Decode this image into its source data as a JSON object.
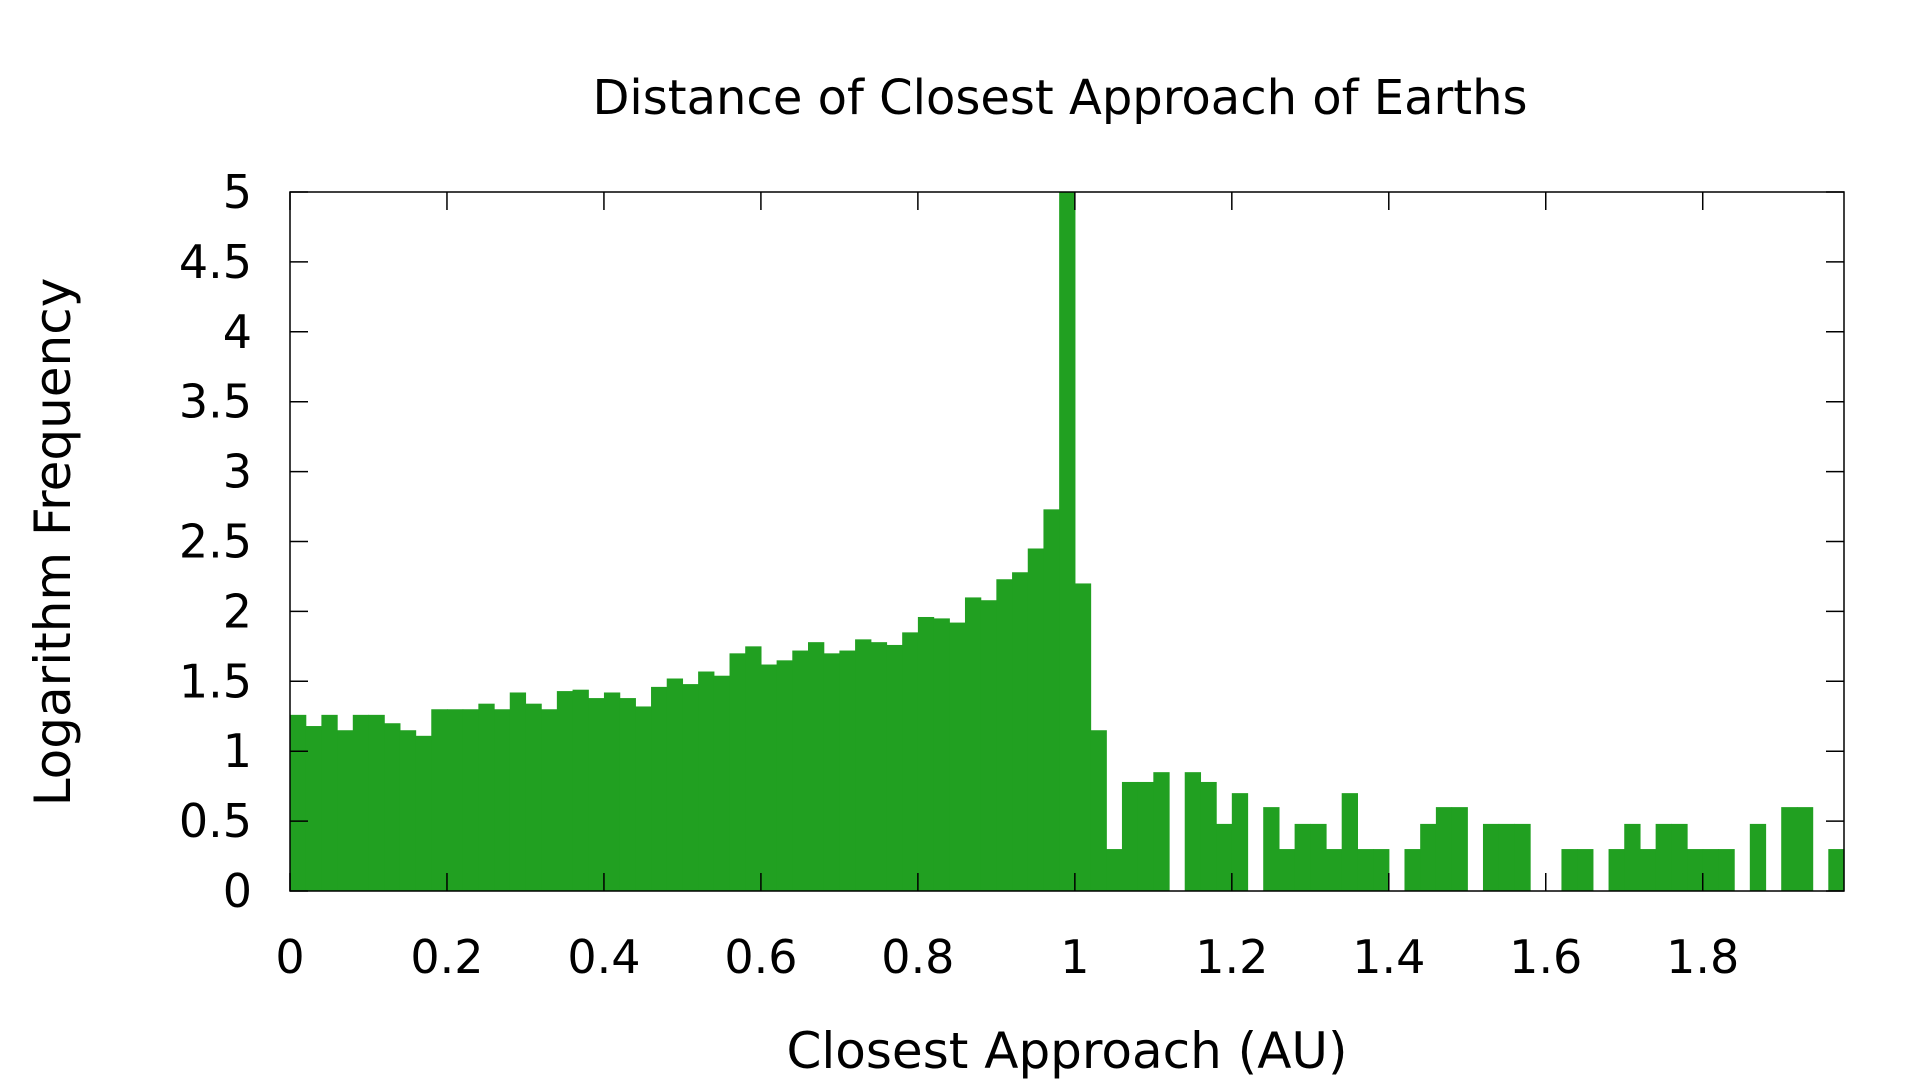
{
  "chart_data": {
    "type": "bar",
    "title": "Distance of Closest Approach of Earths",
    "xlabel": "Closest Approach (AU)",
    "ylabel": "Logarithm Frequency",
    "xlim": [
      0,
      1.98
    ],
    "ylim": [
      0,
      5
    ],
    "xticks": [
      0,
      0.2,
      0.4,
      0.6,
      0.8,
      1,
      1.2,
      1.4,
      1.6,
      1.8
    ],
    "xtick_labels": [
      "0",
      "0.2",
      "0.4",
      "0.6",
      "0.8",
      "1",
      "1.2",
      "1.4",
      "1.6",
      "1.8"
    ],
    "yticks": [
      0,
      0.5,
      1,
      1.5,
      2,
      2.5,
      3,
      3.5,
      4,
      4.5,
      5
    ],
    "ytick_labels": [
      "0",
      "0.5",
      "1",
      "1.5",
      "2",
      "2.5",
      "3",
      "3.5",
      "4",
      "4.5",
      "5"
    ],
    "bin_width": 0.02,
    "bar_color": "#21a021",
    "grid": false,
    "legend": "none",
    "x": [
      0,
      0.02,
      0.04,
      0.06,
      0.08,
      0.1,
      0.12,
      0.14,
      0.16,
      0.18,
      0.2,
      0.22,
      0.24,
      0.26,
      0.28,
      0.3,
      0.32,
      0.34,
      0.36,
      0.38,
      0.4,
      0.42,
      0.44,
      0.46,
      0.48,
      0.5,
      0.52,
      0.54,
      0.56,
      0.58,
      0.6,
      0.62,
      0.64,
      0.66,
      0.68,
      0.7,
      0.72,
      0.74,
      0.76,
      0.78,
      0.8,
      0.82,
      0.84,
      0.86,
      0.88,
      0.9,
      0.92,
      0.94,
      0.96,
      0.98,
      1.0,
      1.02,
      1.04,
      1.06,
      1.08,
      1.1,
      1.12,
      1.14,
      1.16,
      1.18,
      1.2,
      1.22,
      1.24,
      1.26,
      1.28,
      1.3,
      1.32,
      1.34,
      1.36,
      1.38,
      1.4,
      1.42,
      1.44,
      1.46,
      1.48,
      1.5,
      1.52,
      1.54,
      1.56,
      1.58,
      1.6,
      1.62,
      1.64,
      1.66,
      1.68,
      1.7,
      1.72,
      1.74,
      1.76,
      1.78,
      1.8,
      1.82,
      1.84,
      1.86,
      1.88,
      1.9,
      1.92,
      1.94,
      1.96
    ],
    "values": [
      1.26,
      1.18,
      1.26,
      1.15,
      1.26,
      1.26,
      1.2,
      1.15,
      1.11,
      1.3,
      1.3,
      1.3,
      1.34,
      1.3,
      1.42,
      1.34,
      1.3,
      1.43,
      1.44,
      1.38,
      1.42,
      1.38,
      1.32,
      1.46,
      1.52,
      1.48,
      1.57,
      1.54,
      1.7,
      1.75,
      1.62,
      1.65,
      1.72,
      1.78,
      1.7,
      1.72,
      1.8,
      1.78,
      1.76,
      1.85,
      1.96,
      1.95,
      1.92,
      2.1,
      2.08,
      2.23,
      2.28,
      2.45,
      2.73,
      5.0,
      2.2,
      1.15,
      0.3,
      0.78,
      0.78,
      0.85,
      0.0,
      0.85,
      0.78,
      0.48,
      0.7,
      0.0,
      0.6,
      0.3,
      0.48,
      0.48,
      0.3,
      0.7,
      0.3,
      0.3,
      0.0,
      0.3,
      0.48,
      0.6,
      0.6,
      0.0,
      0.48,
      0.48,
      0.48,
      0.0,
      0.0,
      0.3,
      0.3,
      0.0,
      0.3,
      0.48,
      0.3,
      0.48,
      0.48,
      0.3,
      0.3,
      0.3,
      0.0,
      0.48,
      0.0,
      0.6,
      0.6,
      0.0,
      0.3
    ]
  }
}
